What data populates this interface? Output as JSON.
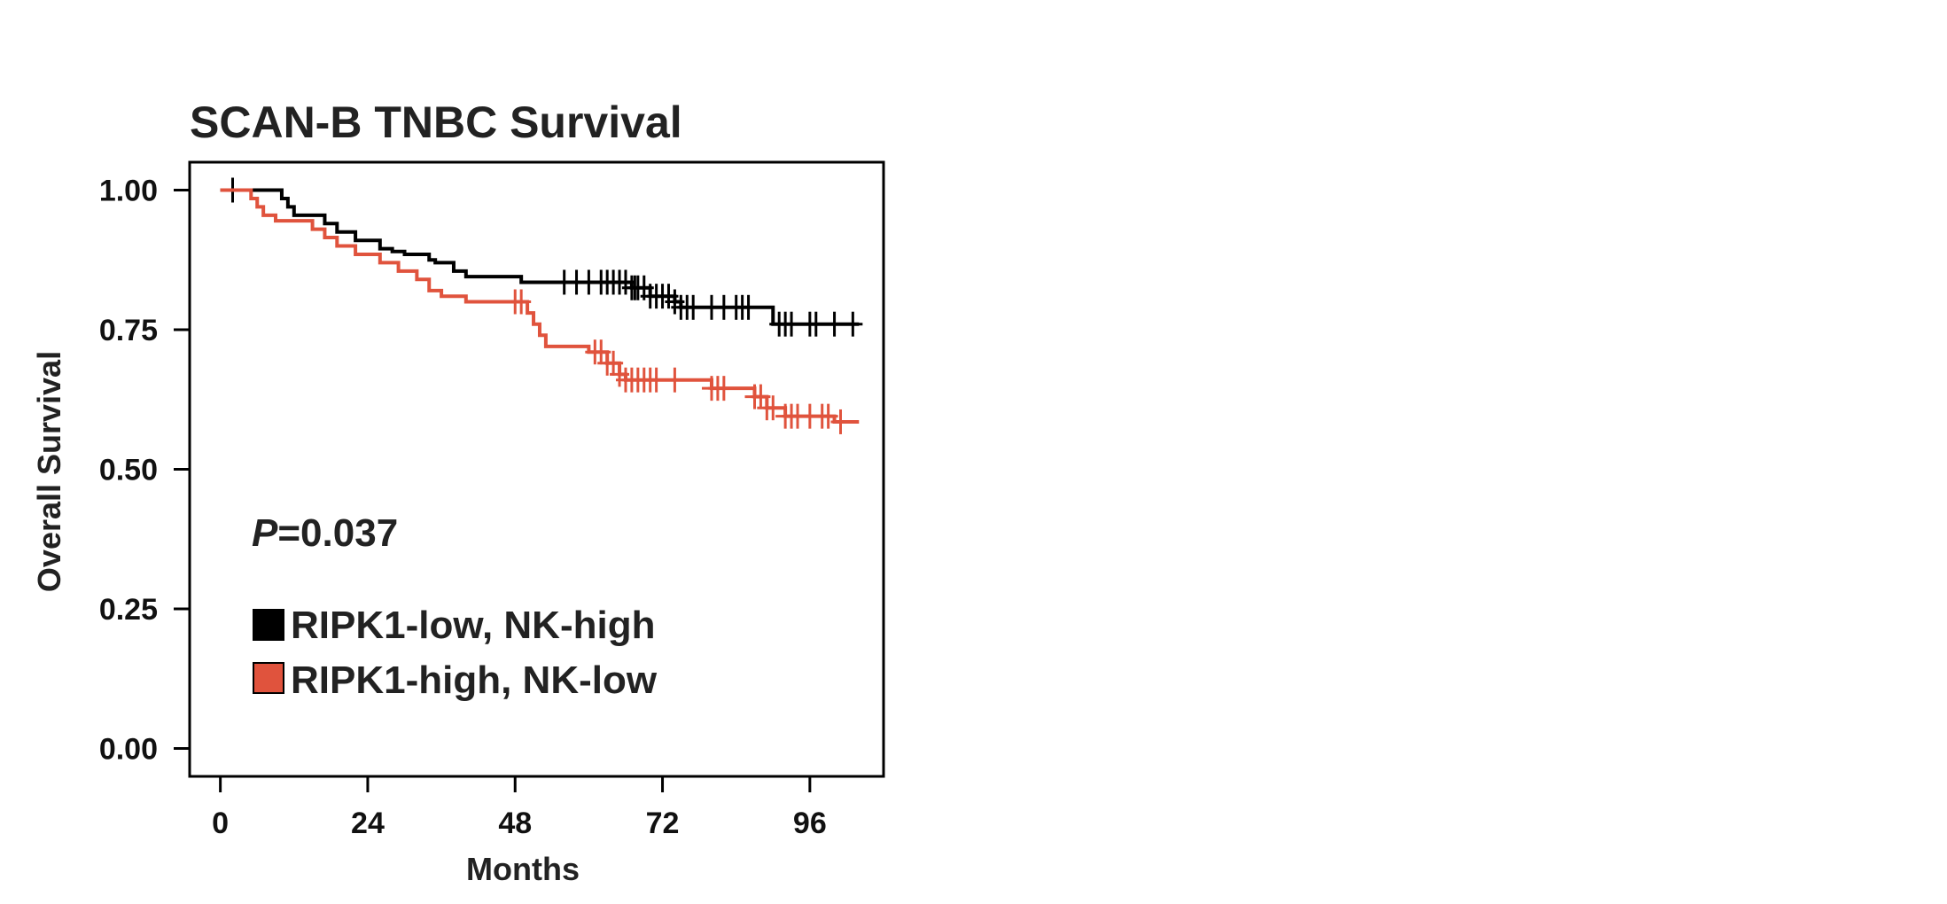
{
  "chart_data": {
    "type": "line",
    "subtype": "kaplan-meier",
    "title": "SCAN-B TNBC Survival",
    "xlabel": "Months",
    "ylabel": "Overall Survival",
    "xlim": [
      -5,
      108
    ],
    "ylim": [
      -0.05,
      1.05
    ],
    "xticks": [
      0,
      24,
      48,
      72,
      96
    ],
    "yticks": [
      0.0,
      0.25,
      0.5,
      0.75,
      1.0
    ],
    "ytick_labels": [
      "0.00",
      "0.25",
      "0.50",
      "0.75",
      "1.00"
    ],
    "grid": false,
    "annotation": {
      "p_italic": "P",
      "p_value": "=0.037"
    },
    "legend_position": "lower-left",
    "series": [
      {
        "name": "RIPK1-low, NK-high",
        "color": "#000000",
        "steps": [
          [
            0,
            1.0
          ],
          [
            10,
            0.985
          ],
          [
            11,
            0.97
          ],
          [
            12,
            0.955
          ],
          [
            17,
            0.94
          ],
          [
            19,
            0.925
          ],
          [
            22,
            0.91
          ],
          [
            26,
            0.895
          ],
          [
            28,
            0.89
          ],
          [
            30,
            0.885
          ],
          [
            34,
            0.875
          ],
          [
            35,
            0.87
          ],
          [
            38,
            0.855
          ],
          [
            40,
            0.845
          ],
          [
            49,
            0.835
          ],
          [
            53,
            0.835
          ],
          [
            67,
            0.825
          ],
          [
            70,
            0.81
          ],
          [
            74,
            0.8
          ],
          [
            75,
            0.79
          ],
          [
            90,
            0.76
          ],
          [
            104,
            0.76
          ]
        ],
        "censor_times": [
          2,
          56,
          58,
          60,
          62,
          63,
          64,
          65,
          66,
          67,
          67.5,
          68,
          69,
          70,
          71,
          72,
          73,
          74,
          75,
          76,
          77,
          80,
          82,
          84,
          85,
          86,
          91,
          92,
          93,
          96,
          97,
          100,
          103
        ]
      },
      {
        "name": "RIPK1-high, NK-low",
        "color": "#e0533d",
        "steps": [
          [
            0,
            1.0
          ],
          [
            5,
            0.985
          ],
          [
            6,
            0.97
          ],
          [
            7,
            0.955
          ],
          [
            9,
            0.945
          ],
          [
            15,
            0.93
          ],
          [
            17,
            0.915
          ],
          [
            19,
            0.9
          ],
          [
            22,
            0.885
          ],
          [
            26,
            0.87
          ],
          [
            29,
            0.855
          ],
          [
            32,
            0.84
          ],
          [
            34,
            0.82
          ],
          [
            36,
            0.81
          ],
          [
            40,
            0.8
          ],
          [
            50,
            0.78
          ],
          [
            51,
            0.76
          ],
          [
            52,
            0.74
          ],
          [
            53,
            0.72
          ],
          [
            60,
            0.71
          ],
          [
            63,
            0.69
          ],
          [
            65,
            0.67
          ],
          [
            66,
            0.66
          ],
          [
            72,
            0.66
          ],
          [
            80,
            0.645
          ],
          [
            87,
            0.63
          ],
          [
            89,
            0.61
          ],
          [
            92,
            0.595
          ],
          [
            100,
            0.585
          ],
          [
            104,
            0.585
          ]
        ],
        "censor_times": [
          48,
          49,
          61,
          62,
          63,
          64,
          65,
          66,
          67,
          68,
          69,
          70,
          71,
          74,
          80,
          81,
          82,
          87,
          88,
          89,
          90,
          92,
          93,
          94,
          96,
          98,
          99,
          101
        ]
      }
    ]
  }
}
